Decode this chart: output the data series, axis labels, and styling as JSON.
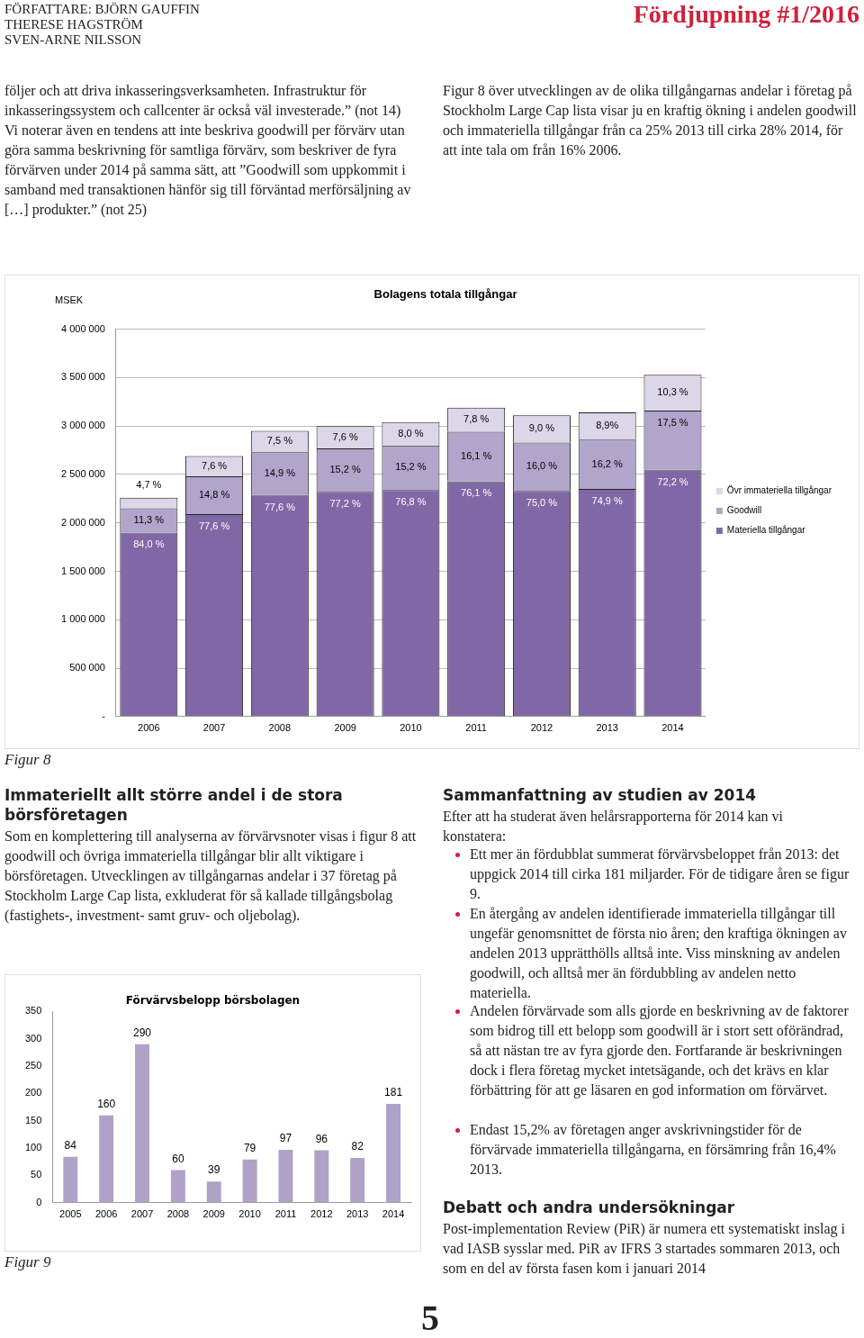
{
  "chart_data": [
    {
      "type": "other",
      "annotations": [
        "FÖRFATTARE: BJÖRN GAUFFIN\nTHERESE HAGSTRÖM\nSVEN-ARNE NILSSON",
        "Fördjupning #1/2016",
        "följer och att driva inkasseringsverksamheten. Infrastruktur för inkasseringssystem och callcenter är också väl investerade.” (not 14)\nVi noterar även en tendens att inte beskriva goodwill per förvärv utan göra samma beskrivning för samtliga förvärv, som beskriver de fyra förvärven under 2014 på samma sätt, att ”Goodwill som uppkommit i samband med transaktionen hänför sig till förväntad merförsäljning av […] produkter.” (not 25)",
        "Figur 8 över utvecklingen av de olika tillgångarnas andelar i företag på Stockholm Large Cap lista visar ju en kraftig ökning i andelen goodwill och immateriella tillgångar från ca 25% 2013 till cirka 28% 2014, för att inte tala om från 16% 2006.",
        "Immateriellt allt större andel i de stora börsföretagen",
        "Som en komplettering till analyserna av förvärvsnoter visas i figur 8 att goodwill och övriga immateriella tillgångar blir allt viktigare i börsföretagen. Utvecklingen av tillgångarnas andelar i 37 företag på Stockholm Large Cap lista, exkluderat för så kallade tillgångsbolag (fastighets-, investment- samt gruv- och oljebolag).",
        "Sammanfattning av studien av 2014",
        "Efter att ha studerat även helårsrapporterna för 2014 kan vi konstatera:",
        "Ett mer än fördubblat summerat förvärvsbeloppet från 2013: det uppgick 2014 till cirka 181 miljarder. För de tidigare åren se figur 9.",
        "En återgång av andelen identifierade immateriella tillgångar till ungefär genomsnittet de första nio åren; den kraftiga ökningen av andelen 2013 upprätthölls alltså inte. Viss minskning av andelen goodwill, och alltså mer än fördubbling av andelen netto materiella.",
        "Andelen förvärvade som alls gjorde en beskrivning av de faktorer som bidrog till ett belopp som goodwill är i stort sett oförändrad, så att nästan tre av fyra gjorde den. Fortfarande är beskrivningen dock i flera företag mycket intetsägande, och det krävs en klar förbättring för att ge läsaren en god information om förvärvet.",
        "Endast 15,2% av företagen anger avskrivningstider för de förvärvade immateriella tillgångarna, en försämring från 16,4% 2013.",
        "Debatt och andra undersökningar",
        "Post-implementation Review (PiR) är numera ett systematiskt inslag i vad IASB sysslar med. PiR av IFRS 3 startades sommaren 2013, och som en del av första fasen kom i januari 2014",
        "5"
      ]
    },
    {
      "type": "bar",
      "title": "Bolagens totala tillgångar",
      "ylabel": "MSEK",
      "categories": [
        "2006",
        "2007",
        "2008",
        "2009",
        "2010",
        "2011",
        "2012",
        "2013",
        "2014"
      ],
      "stacked": true,
      "series": [
        {
          "name": "Materiella tillgångar",
          "color": "#8068a6",
          "values": [
            1900000,
            2090000,
            2290000,
            2320000,
            2340000,
            2430000,
            2330000,
            2350000,
            2550000
          ]
        },
        {
          "name": "Goodwill",
          "color": "#b1a5cb",
          "values": [
            250000,
            390000,
            440000,
            450000,
            460000,
            510000,
            500000,
            510000,
            610000
          ]
        },
        {
          "name": "Övr immateriella tillgångar",
          "color": "#dcd6e9",
          "values": [
            110000,
            210000,
            220000,
            230000,
            240000,
            250000,
            280000,
            280000,
            370000
          ]
        }
      ],
      "ylim": [
        0,
        4000000
      ],
      "yticks": [
        {
          "value": 0,
          "label": "-"
        },
        {
          "value": 500000,
          "label": "500 000"
        },
        {
          "value": 1000000,
          "label": "1 000 000"
        },
        {
          "value": 1500000,
          "label": "1 500 000"
        },
        {
          "value": 2000000,
          "label": "2 000 000"
        },
        {
          "value": 2500000,
          "label": "2 500 000"
        },
        {
          "value": 3000000,
          "label": "3 000 000"
        },
        {
          "value": 3500000,
          "label": "3 500 000"
        },
        {
          "value": 4000000,
          "label": "4 000 000"
        }
      ],
      "grid": "y",
      "legend": "right",
      "annotations": [
        "Figur 8",
        {
          "text": "84,0 %",
          "x": "2006",
          "y": 1900000
        },
        {
          "text": "77,6 %",
          "x": "2007",
          "y": 2090000
        },
        {
          "text": "77,6 %",
          "x": "2008",
          "y": 2290000
        },
        {
          "text": "77,2 %",
          "x": "2009",
          "y": 2320000
        },
        {
          "text": "76,8 %",
          "x": "2010",
          "y": 2340000
        },
        {
          "text": "76,1 %",
          "x": "2011",
          "y": 2430000
        },
        {
          "text": "75,0 %",
          "x": "2012",
          "y": 2330000
        },
        {
          "text": "74,9 %",
          "x": "2013",
          "y": 2350000
        },
        {
          "text": "72,2 %",
          "x": "2014",
          "y": 2550000
        },
        {
          "text": "11,3 %",
          "x": "2006",
          "y": 2150000
        },
        {
          "text": "14,8 %",
          "x": "2007",
          "y": 2480000
        },
        {
          "text": "14,9 %",
          "x": "2008",
          "y": 2730000
        },
        {
          "text": "15,2 %",
          "x": "2009",
          "y": 2770000
        },
        {
          "text": "15,2 %",
          "x": "2010",
          "y": 2800000
        },
        {
          "text": "16,1 %",
          "x": "2011",
          "y": 2940000
        },
        {
          "text": "16,0 %",
          "x": "2012",
          "y": 2830000
        },
        {
          "text": "16,2 %",
          "x": "2013",
          "y": 2860000
        },
        {
          "text": "17,5 %",
          "x": "2014",
          "y": 3160000
        },
        {
          "text": "4,7 %",
          "x": "2006",
          "y": 2260000
        },
        {
          "text": "7,6 %",
          "x": "2007",
          "y": 2690000
        },
        {
          "text": "7,5 %",
          "x": "2008",
          "y": 2950000
        },
        {
          "text": "7,6 %",
          "x": "2009",
          "y": 3000000
        },
        {
          "text": "8,0 %",
          "x": "2010",
          "y": 3040000
        },
        {
          "text": "7,8 %",
          "x": "2011",
          "y": 3190000
        },
        {
          "text": "9,0 %",
          "x": "2012",
          "y": 3110000
        },
        {
          "text": "8,9%",
          "x": "2013",
          "y": 3140000
        },
        {
          "text": "10,3 %",
          "x": "2014",
          "y": 3530000
        }
      ]
    },
    {
      "type": "bar",
      "title": "Förvärvsbelopp börsbolagen",
      "categories": [
        "2005",
        "2006",
        "2007",
        "2008",
        "2009",
        "2010",
        "2011",
        "2012",
        "2013",
        "2014"
      ],
      "values": [
        84,
        160,
        290,
        60,
        39,
        79,
        97,
        96,
        82,
        181
      ],
      "color": "#b0a1c9",
      "ylim": [
        0,
        350
      ],
      "yticks": [
        0,
        50,
        100,
        150,
        200,
        250,
        300,
        350
      ],
      "data_labels": true,
      "annotations": [
        "Figur 9"
      ]
    }
  ]
}
